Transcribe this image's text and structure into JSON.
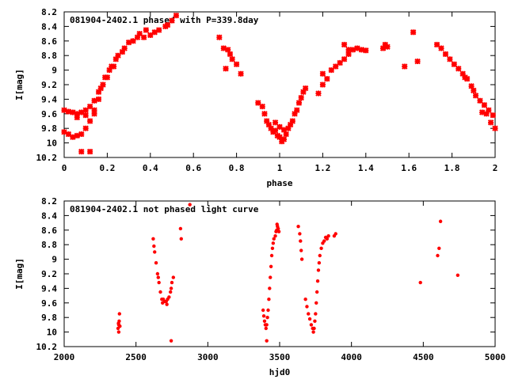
{
  "chart_data": [
    {
      "type": "scatter",
      "title": "081904-2402.1 phased with P=339.8day",
      "xlabel": "phase",
      "ylabel": "I[mag]",
      "xlim": [
        0,
        2
      ],
      "ylim": [
        10.2,
        8.2
      ],
      "y_inverted": true,
      "x_ticks": [
        0,
        0.2,
        0.4,
        0.6,
        0.8,
        1,
        1.2,
        1.4,
        1.6,
        1.8,
        2
      ],
      "y_ticks": [
        8.2,
        8.4,
        8.6,
        8.8,
        9,
        9.2,
        9.4,
        9.6,
        9.8,
        10,
        10.2
      ],
      "grid": false,
      "marker_color": "#ff0000",
      "series": [
        {
          "points": [
            [
              0.0,
              9.55
            ],
            [
              0.02,
              9.57
            ],
            [
              0.04,
              9.58
            ],
            [
              0.06,
              9.6
            ],
            [
              0.08,
              9.58
            ],
            [
              0.1,
              9.55
            ],
            [
              0.12,
              9.5
            ],
            [
              0.14,
              9.42
            ],
            [
              0.16,
              9.3
            ],
            [
              0.18,
              9.2
            ],
            [
              0.2,
              9.1
            ],
            [
              0.22,
              8.95
            ],
            [
              0.24,
              8.85
            ],
            [
              0.27,
              8.75
            ],
            [
              0.3,
              8.62
            ],
            [
              0.34,
              8.55
            ],
            [
              0.37,
              8.55
            ],
            [
              0.4,
              8.52
            ],
            [
              0.0,
              9.85
            ],
            [
              0.02,
              9.88
            ],
            [
              0.04,
              9.92
            ],
            [
              0.06,
              9.9
            ],
            [
              0.08,
              9.88
            ],
            [
              0.1,
              9.8
            ],
            [
              0.12,
              9.7
            ],
            [
              0.14,
              9.55
            ],
            [
              0.16,
              9.4
            ],
            [
              0.17,
              9.25
            ],
            [
              0.19,
              9.1
            ],
            [
              0.21,
              9.0
            ],
            [
              0.23,
              8.95
            ],
            [
              0.25,
              8.8
            ],
            [
              0.28,
              8.7
            ],
            [
              0.32,
              8.6
            ],
            [
              0.35,
              8.5
            ],
            [
              0.38,
              8.45
            ],
            [
              0.08,
              10.12
            ],
            [
              0.12,
              10.12
            ],
            [
              0.06,
              9.65
            ],
            [
              0.1,
              9.62
            ],
            [
              0.14,
              9.6
            ],
            [
              0.42,
              8.48
            ],
            [
              0.44,
              8.45
            ],
            [
              0.47,
              8.4
            ],
            [
              0.5,
              8.32
            ],
            [
              0.52,
              8.25
            ],
            [
              0.48,
              8.38
            ],
            [
              0.72,
              8.55
            ],
            [
              0.74,
              8.7
            ],
            [
              0.76,
              8.72
            ],
            [
              0.77,
              8.78
            ],
            [
              0.78,
              8.85
            ],
            [
              0.8,
              8.92
            ],
            [
              0.82,
              9.05
            ],
            [
              0.75,
              8.98
            ],
            [
              0.9,
              9.45
            ],
            [
              0.92,
              9.5
            ],
            [
              0.93,
              9.6
            ],
            [
              0.94,
              9.7
            ],
            [
              0.95,
              9.75
            ],
            [
              0.96,
              9.8
            ],
            [
              0.97,
              9.85
            ],
            [
              0.98,
              9.83
            ],
            [
              0.99,
              9.9
            ],
            [
              1.0,
              9.92
            ],
            [
              1.01,
              9.98
            ],
            [
              1.02,
              9.95
            ],
            [
              1.03,
              9.88
            ],
            [
              1.04,
              9.8
            ],
            [
              1.05,
              9.75
            ],
            [
              1.06,
              9.7
            ],
            [
              1.07,
              9.6
            ],
            [
              1.08,
              9.55
            ],
            [
              1.09,
              9.45
            ],
            [
              1.1,
              9.38
            ],
            [
              1.11,
              9.3
            ],
            [
              1.12,
              9.25
            ],
            [
              0.98,
              9.72
            ],
            [
              1.02,
              9.82
            ],
            [
              1.0,
              9.78
            ],
            [
              1.18,
              9.32
            ],
            [
              1.2,
              9.2
            ],
            [
              1.2,
              9.05
            ],
            [
              1.22,
              9.12
            ],
            [
              1.24,
              9.0
            ],
            [
              1.26,
              8.95
            ],
            [
              1.28,
              8.9
            ],
            [
              1.3,
              8.85
            ],
            [
              1.32,
              8.78
            ],
            [
              1.34,
              8.72
            ],
            [
              1.36,
              8.7
            ],
            [
              1.38,
              8.72
            ],
            [
              1.4,
              8.73
            ],
            [
              1.3,
              8.65
            ],
            [
              1.32,
              8.72
            ],
            [
              1.49,
              8.65
            ],
            [
              1.5,
              8.68
            ],
            [
              1.48,
              8.7
            ],
            [
              1.58,
              8.95
            ],
            [
              1.62,
              8.48
            ],
            [
              1.64,
              8.88
            ],
            [
              1.73,
              8.65
            ],
            [
              1.75,
              8.7
            ],
            [
              1.77,
              8.78
            ],
            [
              1.79,
              8.85
            ],
            [
              1.81,
              8.92
            ],
            [
              1.83,
              8.98
            ],
            [
              1.85,
              9.05
            ],
            [
              1.87,
              9.12
            ],
            [
              1.89,
              9.22
            ],
            [
              1.91,
              9.35
            ],
            [
              1.93,
              9.42
            ],
            [
              1.95,
              9.48
            ],
            [
              1.97,
              9.55
            ],
            [
              1.99,
              9.62
            ],
            [
              2.0,
              9.8
            ],
            [
              1.98,
              9.72
            ],
            [
              1.94,
              9.58
            ],
            [
              1.96,
              9.6
            ],
            [
              1.9,
              9.28
            ],
            [
              1.86,
              9.1
            ]
          ]
        }
      ]
    },
    {
      "type": "scatter",
      "title": "081904-2402.1 not phased light curve",
      "xlabel": "hjd0",
      "ylabel": "I[mag]",
      "xlim": [
        2000,
        5000
      ],
      "ylim": [
        10.2,
        8.2
      ],
      "y_inverted": true,
      "x_ticks": [
        2000,
        2500,
        3000,
        3500,
        4000,
        4500,
        5000
      ],
      "y_ticks": [
        8.2,
        8.4,
        8.6,
        8.8,
        9,
        9.2,
        9.4,
        9.6,
        9.8,
        10,
        10.2
      ],
      "grid": false,
      "marker_color": "#ff0000",
      "series": [
        {
          "points": [
            [
              2375,
              9.95
            ],
            [
              2378,
              9.88
            ],
            [
              2380,
              9.9
            ],
            [
              2383,
              9.85
            ],
            [
              2385,
              9.75
            ],
            [
              2388,
              9.92
            ],
            [
              2380,
              10.0
            ],
            [
              2620,
              8.72
            ],
            [
              2630,
              8.9
            ],
            [
              2640,
              9.05
            ],
            [
              2650,
              9.2
            ],
            [
              2660,
              9.32
            ],
            [
              2670,
              9.45
            ],
            [
              2680,
              9.55
            ],
            [
              2690,
              9.55
            ],
            [
              2700,
              9.58
            ],
            [
              2710,
              9.58
            ],
            [
              2720,
              9.55
            ],
            [
              2730,
              9.52
            ],
            [
              2740,
              9.45
            ],
            [
              2745,
              9.4
            ],
            [
              2750,
              9.32
            ],
            [
              2745,
              10.12
            ],
            [
              2760,
              9.25
            ],
            [
              2810,
              8.58
            ],
            [
              2815,
              8.72
            ],
            [
              2875,
              8.25
            ],
            [
              2625,
              8.82
            ],
            [
              2655,
              9.25
            ],
            [
              2685,
              9.6
            ],
            [
              2715,
              9.62
            ],
            [
              3385,
              9.7
            ],
            [
              3390,
              9.78
            ],
            [
              3395,
              9.85
            ],
            [
              3400,
              9.9
            ],
            [
              3405,
              9.95
            ],
            [
              3410,
              9.9
            ],
            [
              3415,
              9.8
            ],
            [
              3420,
              9.7
            ],
            [
              3425,
              9.55
            ],
            [
              3430,
              9.4
            ],
            [
              3435,
              9.25
            ],
            [
              3440,
              9.1
            ],
            [
              3445,
              8.95
            ],
            [
              3450,
              8.85
            ],
            [
              3455,
              8.78
            ],
            [
              3460,
              8.72
            ],
            [
              3470,
              8.68
            ],
            [
              3475,
              8.62
            ],
            [
              3480,
              8.6
            ],
            [
              3485,
              8.55
            ],
            [
              3490,
              8.58
            ],
            [
              3495,
              8.62
            ],
            [
              3410,
              10.12
            ],
            [
              3482,
              8.52
            ],
            [
              3630,
              8.55
            ],
            [
              3640,
              8.65
            ],
            [
              3645,
              8.75
            ],
            [
              3650,
              8.88
            ],
            [
              3655,
              9.0
            ],
            [
              3680,
              9.55
            ],
            [
              3690,
              9.65
            ],
            [
              3700,
              9.75
            ],
            [
              3710,
              9.82
            ],
            [
              3720,
              9.9
            ],
            [
              3730,
              9.95
            ],
            [
              3735,
              10.0
            ],
            [
              3740,
              9.95
            ],
            [
              3745,
              9.85
            ],
            [
              3750,
              9.75
            ],
            [
              3755,
              9.6
            ],
            [
              3760,
              9.45
            ],
            [
              3765,
              9.3
            ],
            [
              3770,
              9.15
            ],
            [
              3775,
              9.05
            ],
            [
              3780,
              8.95
            ],
            [
              3790,
              8.85
            ],
            [
              3800,
              8.78
            ],
            [
              3810,
              8.75
            ],
            [
              3820,
              8.7
            ],
            [
              3830,
              8.72
            ],
            [
              3840,
              8.68
            ],
            [
              3880,
              8.68
            ],
            [
              3890,
              8.65
            ],
            [
              4480,
              9.32
            ],
            [
              4600,
              8.95
            ],
            [
              4610,
              8.85
            ],
            [
              4620,
              8.48
            ],
            [
              4740,
              9.22
            ]
          ]
        }
      ]
    }
  ]
}
